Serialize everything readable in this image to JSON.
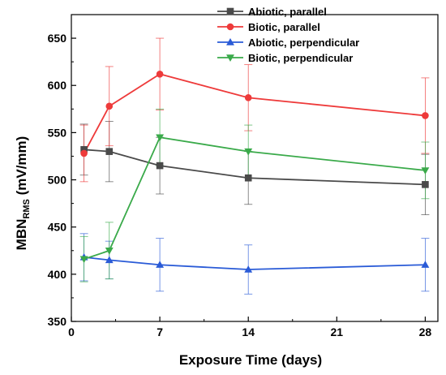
{
  "chart_data": {
    "type": "line",
    "xlabel": "Exposure Time (days)",
    "ylabel": "MBN",
    "ylabel_sub": "RMS",
    "ylabel_unit": " (mV/mm)",
    "xlim": [
      0,
      29
    ],
    "ylim": [
      350,
      675
    ],
    "xticks": [
      0,
      7,
      14,
      21,
      28
    ],
    "yticks": [
      350,
      400,
      450,
      500,
      550,
      600,
      650
    ],
    "grid": false,
    "legend_position": "top-right",
    "series": [
      {
        "name": "Abiotic, parallel",
        "marker": "square",
        "color": "#4a4a4a",
        "x": [
          1,
          3,
          7,
          14,
          28
        ],
        "y": [
          532,
          530,
          515,
          502,
          495
        ],
        "err": [
          27,
          32,
          30,
          28,
          32
        ]
      },
      {
        "name": "Biotic, parallel",
        "marker": "circle",
        "color": "#ee3a3a",
        "x": [
          1,
          3,
          7,
          14,
          28
        ],
        "y": [
          528,
          578,
          612,
          587,
          568
        ],
        "err": [
          30,
          42,
          38,
          35,
          40
        ]
      },
      {
        "name": "Abiotic, perpendicular",
        "marker": "triangle-up",
        "color": "#2a5bd7",
        "x": [
          1,
          3,
          7,
          14,
          28
        ],
        "y": [
          418,
          415,
          410,
          405,
          410
        ],
        "err": [
          25,
          20,
          28,
          26,
          28
        ]
      },
      {
        "name": "Biotic, perpendicular",
        "marker": "triangle-down",
        "color": "#3aaa4a",
        "x": [
          1,
          3,
          7,
          14,
          28
        ],
        "y": [
          416,
          425,
          545,
          530,
          510
        ],
        "err": [
          24,
          30,
          30,
          28,
          30
        ]
      }
    ]
  }
}
